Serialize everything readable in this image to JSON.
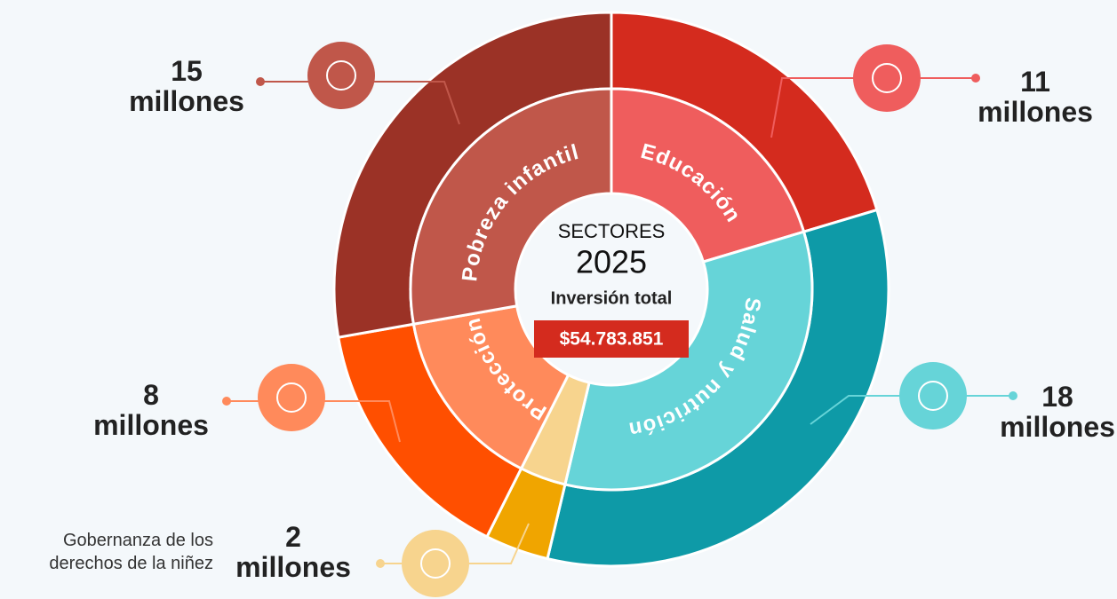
{
  "chart_data": {
    "type": "donut",
    "center_title": "SECTORES",
    "center_year": "2025",
    "center_subtitle": "Inversión total",
    "center_total": "$54.783.851",
    "categories": [
      "Educación",
      "Salud y nutrición",
      "Gobernanza de los derechos de la niñez",
      "Protección",
      "Pobreza infantil"
    ],
    "values": [
      11,
      18,
      2,
      8,
      15
    ],
    "value_labels": [
      "11 millones",
      "18 millones",
      "2 millones",
      "8 millones",
      "15 millones"
    ],
    "colors": [
      "#d42b1e",
      "#0e9aa7",
      "#f0a500",
      "#ff4f00",
      "#9b3226"
    ],
    "inner_colors": [
      "#ef5d5d",
      "#66d4d8",
      "#f7d48e",
      "#ff8a5b",
      "#c0574a"
    ]
  }
}
